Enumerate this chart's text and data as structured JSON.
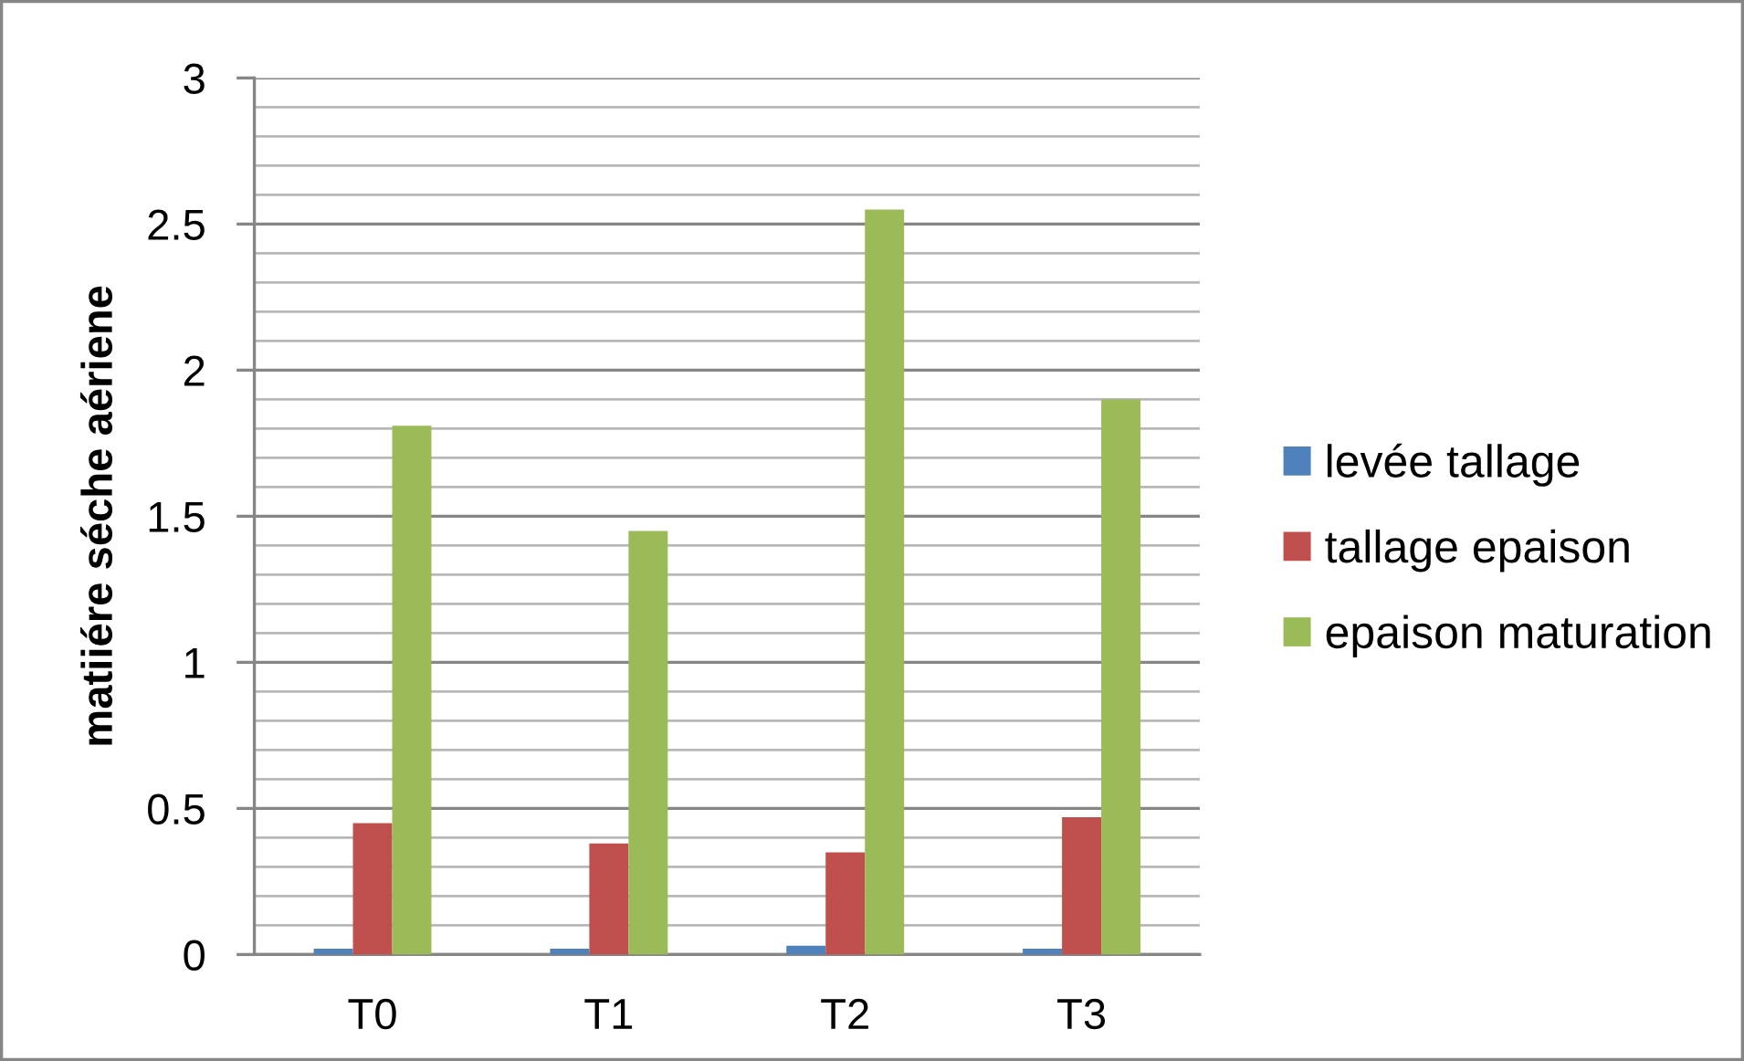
{
  "chart_data": {
    "type": "bar",
    "ylabel": "matiiére séche aériene",
    "categories": [
      "T0",
      "T1",
      "T2",
      "T3"
    ],
    "series": [
      {
        "name": "levée tallage",
        "color": "#4f81bd",
        "values": [
          0.02,
          0.02,
          0.03,
          0.02
        ]
      },
      {
        "name": "tallage epaison",
        "color": "#c0504d",
        "values": [
          0.45,
          0.38,
          0.35,
          0.47
        ]
      },
      {
        "name": "epaison maturation",
        "color": "#9bbb59",
        "values": [
          1.81,
          1.45,
          2.55,
          1.9
        ]
      }
    ],
    "ylim": [
      0,
      3
    ],
    "yticks": [
      0,
      {
        "value": 0.1,
        "label": null
      },
      {
        "value": 0.2,
        "label": null
      },
      {
        "value": 0.3,
        "label": null
      },
      {
        "value": 0.4,
        "label": null
      },
      0.5,
      {
        "value": 0.6,
        "label": null
      },
      {
        "value": 0.7,
        "label": null
      },
      {
        "value": 0.8,
        "label": null
      },
      {
        "value": 0.9,
        "label": null
      },
      1,
      {
        "value": 1.1,
        "label": null
      },
      {
        "value": 1.2,
        "label": null
      },
      {
        "value": 1.3,
        "label": null
      },
      {
        "value": 1.4,
        "label": null
      },
      1.5,
      {
        "value": 1.6,
        "label": null
      },
      {
        "value": 1.7,
        "label": null
      },
      {
        "value": 1.8,
        "label": null
      },
      {
        "value": 1.9,
        "label": null
      },
      2,
      {
        "value": 2.1,
        "label": null
      },
      {
        "value": 2.2,
        "label": null
      },
      {
        "value": 2.3,
        "label": null
      },
      {
        "value": 2.4,
        "label": null
      },
      2.5,
      {
        "value": 2.6,
        "label": null
      },
      {
        "value": 2.7,
        "label": null
      },
      {
        "value": 2.8,
        "label": null
      },
      {
        "value": 2.9,
        "label": null
      },
      3
    ],
    "grid": "y",
    "legend": "right"
  }
}
